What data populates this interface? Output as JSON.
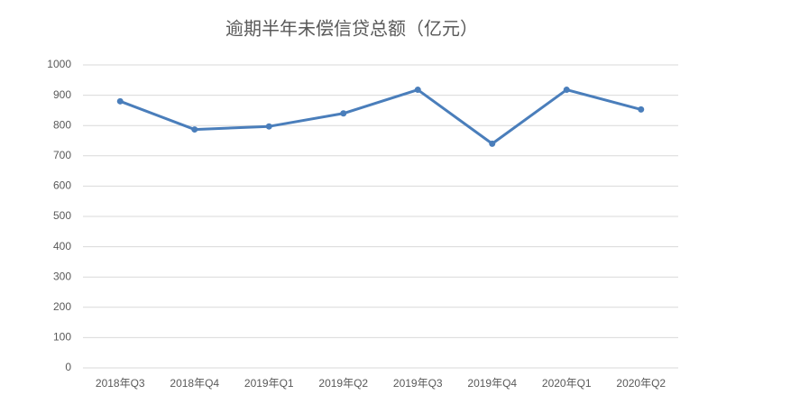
{
  "chart_data": {
    "type": "line",
    "title": "逾期半年未偿信贷总额（亿元）",
    "categories": [
      "2018年Q3",
      "2018年Q4",
      "2019年Q1",
      "2019年Q2",
      "2019年Q3",
      "2019年Q4",
      "2020年Q1",
      "2020年Q2"
    ],
    "values": [
      880,
      787,
      797,
      840,
      918,
      740,
      918,
      853
    ],
    "color": "#4a7ebb",
    "ylim": [
      0,
      1000
    ],
    "yticks": [
      0,
      100,
      200,
      300,
      400,
      500,
      600,
      700,
      800,
      900,
      1000
    ],
    "grid": true
  }
}
